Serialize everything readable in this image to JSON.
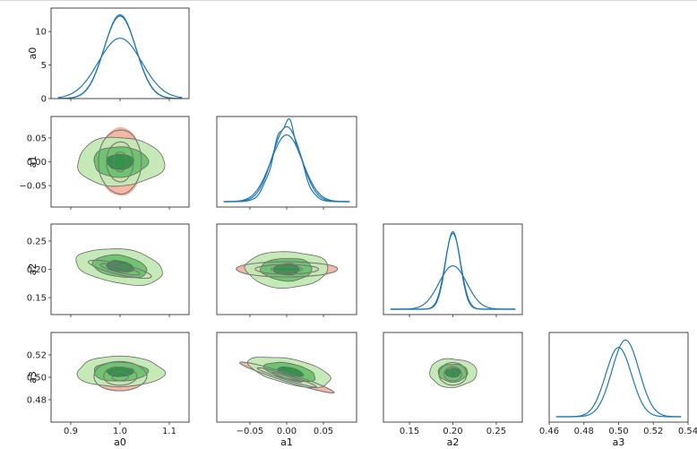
{
  "chart_data": {
    "type": "corner",
    "variables": [
      "a0",
      "a1",
      "a2",
      "a3"
    ],
    "ranges": {
      "a0": [
        0.86,
        1.14
      ],
      "a1": [
        -0.095,
        0.095
      ],
      "a2": [
        0.12,
        0.28
      ],
      "a3": [
        0.46,
        0.54
      ],
      "a0_density": [
        0,
        13.5
      ]
    },
    "ticks": {
      "a0": [
        0.9,
        1.0,
        1.1
      ],
      "a1": [
        -0.05,
        0.0,
        0.05
      ],
      "a2": [
        0.15,
        0.2,
        0.25
      ],
      "a3": [
        0.46,
        0.48,
        0.5,
        0.52,
        0.54
      ],
      "a1_y": [
        -0.05,
        0.0,
        0.05
      ],
      "a2_y": [
        0.15,
        0.2,
        0.25
      ],
      "a3_y": [
        0.48,
        0.5,
        0.52
      ],
      "a0_density": [
        0,
        5,
        10
      ]
    },
    "tick_labels": {
      "a0": [
        "0.9",
        "1.0",
        "1.1"
      ],
      "a1": [
        "−0.05",
        "0.00",
        "0.05"
      ],
      "a2": [
        "0.15",
        "0.20",
        "0.25"
      ],
      "a3": [
        "0.46",
        "0.48",
        "0.50",
        "0.52",
        "0.54"
      ],
      "a1_y": [
        "−0.05",
        "0.00",
        "0.05"
      ],
      "a2_y": [
        "0.15",
        "0.20",
        "0.25"
      ],
      "a3_y": [
        "0.48",
        "0.50",
        "0.52"
      ],
      "a0_density": [
        "0",
        "5",
        "10"
      ]
    },
    "marginals": [
      {
        "var": "a0",
        "curves": [
          {
            "mean": 1.0,
            "sd": 0.032,
            "peak": 12.5
          },
          {
            "mean": 1.0,
            "sd": 0.0325,
            "peak": 12.3
          },
          {
            "mean": 1.0,
            "sd": 0.044,
            "peak": 9.0
          }
        ]
      },
      {
        "var": "a1",
        "curves": [
          {
            "mean": 0.0,
            "sd": 0.0175,
            "peak": 0.96
          },
          {
            "mean": 0.0,
            "sd": 0.0195,
            "peak": 0.9
          },
          {
            "mean": 0.0,
            "sd": 0.0215,
            "peak": 0.8
          }
        ]
      },
      {
        "var": "a2",
        "curves": [
          {
            "mean": 0.2,
            "sd": 0.0085,
            "peak": 0.93
          },
          {
            "mean": 0.2,
            "sd": 0.009,
            "peak": 0.91
          },
          {
            "mean": 0.2,
            "sd": 0.016,
            "peak": 0.52
          }
        ]
      },
      {
        "var": "a3",
        "curves": [
          {
            "mean": 0.5,
            "sd": 0.0075,
            "peak": 0.84
          },
          {
            "mean": 0.504,
            "sd": 0.0078,
            "peak": 0.93
          }
        ]
      }
    ],
    "joint_distributions": [
      {
        "x": "a0",
        "y": "a1",
        "green": {
          "mx": 1.0,
          "my": 0.0,
          "sx": 0.055,
          "sy": 0.032,
          "rho": 0.0
        },
        "salmon": {
          "mx": 1.0,
          "my": 0.0,
          "sx": 0.028,
          "sy": 0.045,
          "rho": 0.0
        },
        "outline": {
          "mx": 1.0,
          "my": 0.0,
          "sx": 0.026,
          "sy": 0.04,
          "rho": 0.0
        }
      },
      {
        "x": "a0",
        "y": "a2",
        "green": {
          "mx": 1.0,
          "my": 0.205,
          "sx": 0.055,
          "sy": 0.02,
          "rho": -0.3
        },
        "salmon": {
          "mx": 1.0,
          "my": 0.2,
          "sx": 0.04,
          "sy": 0.01,
          "rho": -0.8
        },
        "outline": {
          "mx": 1.0,
          "my": 0.2,
          "sx": 0.038,
          "sy": 0.0095,
          "rho": -0.8
        }
      },
      {
        "x": "a1",
        "y": "a2",
        "green": {
          "mx": 0.0,
          "my": 0.2,
          "sx": 0.035,
          "sy": 0.02,
          "rho": 0.0
        },
        "salmon": {
          "mx": 0.0,
          "my": 0.2,
          "sx": 0.043,
          "sy": 0.0085,
          "rho": 0.0
        },
        "outline": {
          "mx": 0.0,
          "my": 0.2,
          "sx": 0.041,
          "sy": 0.008,
          "rho": 0.0
        }
      },
      {
        "x": "a0",
        "y": "a3",
        "green": {
          "mx": 1.0,
          "my": 0.505,
          "sx": 0.055,
          "sy": 0.0085,
          "rho": 0.0
        },
        "salmon": {
          "mx": 1.0,
          "my": 0.5,
          "sx": 0.034,
          "sy": 0.0075,
          "rho": 0.0
        },
        "outline": {
          "mx": 1.0,
          "my": 0.501,
          "sx": 0.032,
          "sy": 0.0078,
          "rho": 0.0
        }
      },
      {
        "x": "a1",
        "y": "a3",
        "green": {
          "mx": 0.005,
          "my": 0.505,
          "sx": 0.035,
          "sy": 0.0085,
          "rho": -0.55
        },
        "salmon": {
          "mx": 0.0,
          "my": 0.5,
          "sx": 0.04,
          "sy": 0.0085,
          "rho": -0.96
        },
        "outline": {
          "mx": 0.0,
          "my": 0.5,
          "sx": 0.038,
          "sy": 0.0082,
          "rho": -0.96
        }
      },
      {
        "x": "a2",
        "y": "a3",
        "green": {
          "mx": 0.2,
          "my": 0.504,
          "sx": 0.017,
          "sy": 0.008,
          "rho": 0.0
        },
        "salmon": {
          "mx": 0.2,
          "my": 0.502,
          "sx": 0.01,
          "sy": 0.006,
          "rho": 0.0
        },
        "outline": {
          "mx": 0.2,
          "my": 0.503,
          "sx": 0.0095,
          "sy": 0.006,
          "rho": 0.0
        }
      }
    ],
    "contour_levels_sigma": [
      0.5,
      1.0,
      1.6
    ],
    "colors": {
      "line": "#1f77b4",
      "green_levels": [
        "#c3e8b4",
        "#6cc16b",
        "#2e9147"
      ],
      "green_edge": "#666666",
      "salmon_levels": [
        "#f5b7a6",
        "#ee8f7a",
        "#d66b57"
      ],
      "outline": "#777777",
      "frame": "#333333"
    },
    "grid": false,
    "legend": "none"
  }
}
